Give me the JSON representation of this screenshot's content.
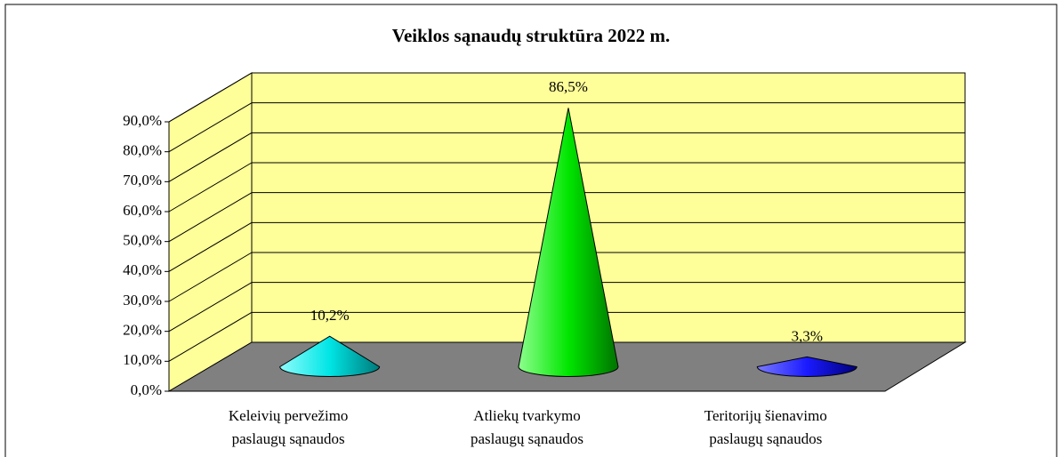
{
  "chart_data": {
    "type": "cone3d",
    "title": "Veiklos sąnaudų struktūra 2022 m.",
    "categories": [
      "Keleivių pervežimo paslaugų sąnaudos",
      "Atliekų tvarkymo paslaugų sąnaudos",
      "Teritorijų šienavimo paslaugų sąnaudos"
    ],
    "values": [
      10.2,
      86.5,
      3.3
    ],
    "value_labels": [
      "10,2%",
      "86,5%",
      "3,3%"
    ],
    "colors": [
      "#00e5e5",
      "#00e600",
      "#1a1aff"
    ],
    "ylim": [
      0,
      90
    ],
    "yticks": [
      {
        "value": 0,
        "label": "0,0%"
      },
      {
        "value": 10,
        "label": "10,0%"
      },
      {
        "value": 20,
        "label": "20,0%"
      },
      {
        "value": 30,
        "label": "30,0%"
      },
      {
        "value": 40,
        "label": "40,0%"
      },
      {
        "value": 50,
        "label": "50,0%"
      },
      {
        "value": 60,
        "label": "60,0%"
      },
      {
        "value": 70,
        "label": "70,0%"
      },
      {
        "value": 80,
        "label": "80,0%"
      },
      {
        "value": 90,
        "label": "90,0%"
      }
    ],
    "grid": true
  }
}
